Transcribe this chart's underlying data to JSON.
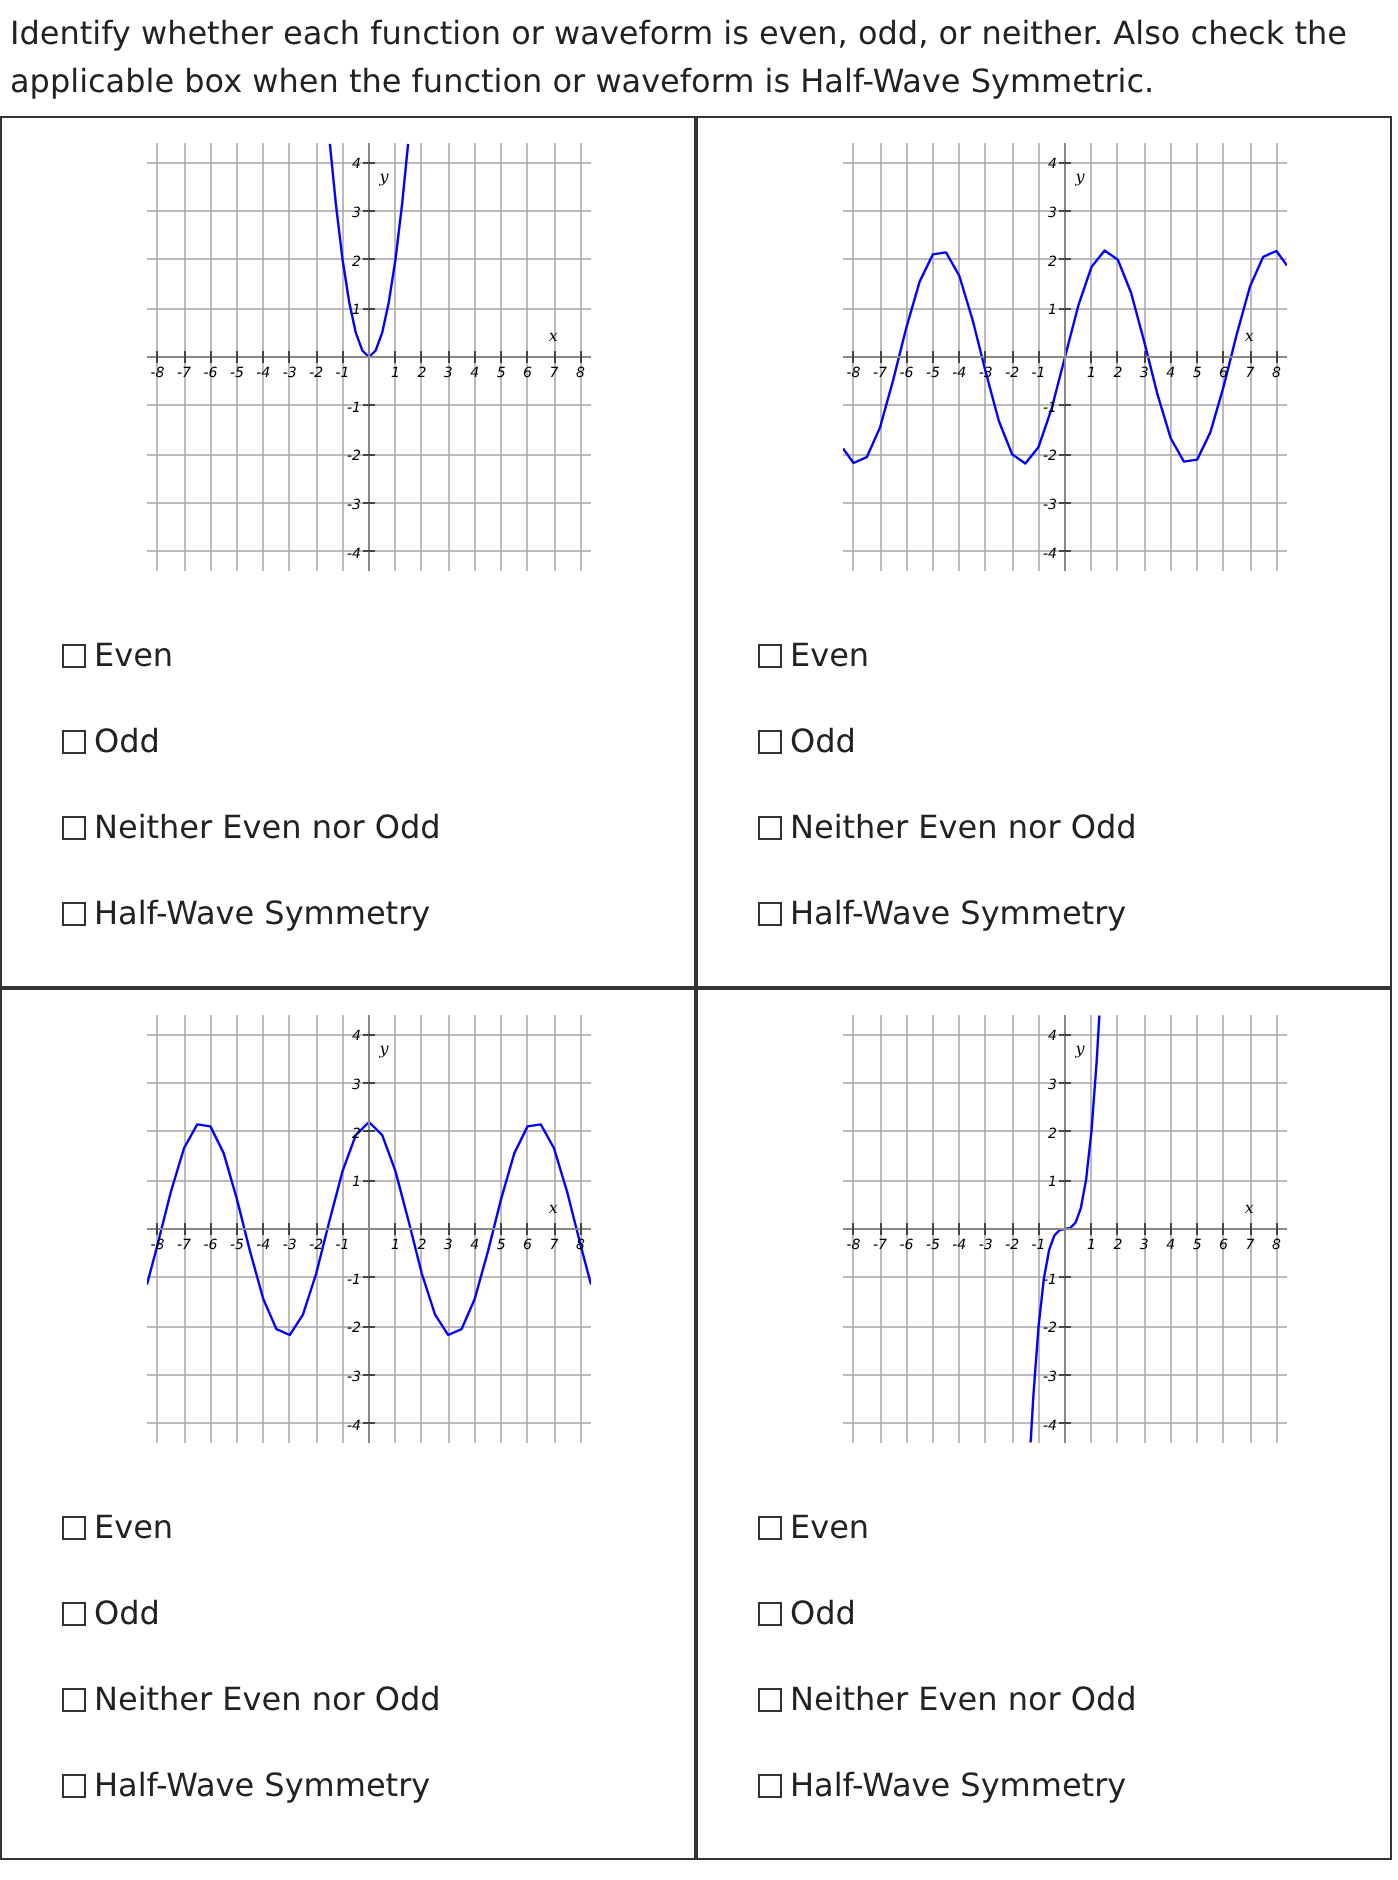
{
  "chart_data": [
    {
      "type": "line",
      "title": "Identify whether each function or waveform is even, odd, or neither. Also check the applicable box when the function or waveform is Half-Wave Symmetric.",
      "xlabel": "x",
      "ylabel": "y",
      "xlim": [
        -8.4,
        8.4
      ],
      "ylim": [
        -4.4,
        4.4
      ],
      "xticks": [
        -8,
        -7,
        -6,
        -5,
        -4,
        -3,
        -2,
        -1,
        1,
        2,
        3,
        4,
        5,
        6,
        7,
        8
      ],
      "yticks": [
        -4,
        -3,
        -2,
        -1,
        1,
        2,
        3,
        4
      ],
      "grid": true,
      "annotations": [
        "Even",
        "Odd",
        "Neither Even nor Odd",
        "Half-Wave Symmetry"
      ],
      "series": [
        {
          "color": "#0000ff",
          "x": [
            -1.48,
            -1.25,
            -1,
            -0.75,
            -0.5,
            -0.25,
            0,
            0.25,
            0.5,
            0.75,
            1,
            1.25,
            1.48
          ],
          "values": [
            4.38,
            3.13,
            2,
            1.13,
            0.5,
            0.13,
            0,
            0.13,
            0.5,
            1.13,
            2,
            3.13,
            4.38
          ]
        }
      ]
    },
    {
      "type": "line",
      "xlabel": "x",
      "ylabel": "y",
      "xlim": [
        -8.4,
        8.4
      ],
      "ylim": [
        -4.4,
        4.4
      ],
      "xticks": [
        -8,
        -7,
        -6,
        -5,
        -4,
        -3,
        -2,
        -1,
        1,
        2,
        3,
        4,
        5,
        6,
        7,
        8
      ],
      "yticks": [
        -4,
        -3,
        -2,
        -1,
        1,
        2,
        3,
        4
      ],
      "grid": true,
      "annotations": [
        "Even",
        "Odd",
        "Neither Even nor Odd",
        "Half-Wave Symmetry"
      ],
      "series": [
        {
          "color": "#0000ff",
          "x": [
            -8.4,
            -8,
            -7.5,
            -7,
            -6.5,
            -6,
            -5.5,
            -5,
            -4.5,
            -4,
            -3.5,
            -3,
            -2.5,
            -2,
            -1.5,
            -1,
            -0.5,
            0,
            0.5,
            1,
            1.5,
            2,
            2.5,
            3,
            3.5,
            4,
            4.5,
            5,
            5.5,
            6,
            6.5,
            7,
            7.5,
            8,
            8.4
          ],
          "values": [
            -1.88,
            -2.18,
            -2.06,
            -1.45,
            -0.47,
            0.61,
            1.55,
            2.11,
            2.15,
            1.67,
            0.77,
            -0.31,
            -1.32,
            -2.0,
            -2.19,
            -1.85,
            -1.05,
            0,
            1.05,
            1.85,
            2.19,
            2.0,
            1.32,
            0.31,
            -0.77,
            -1.67,
            -2.15,
            -2.11,
            -1.55,
            -0.61,
            0.47,
            1.45,
            2.06,
            2.18,
            1.88
          ]
        }
      ]
    },
    {
      "type": "line",
      "xlabel": "x",
      "ylabel": "y",
      "xlim": [
        -8.4,
        8.4
      ],
      "ylim": [
        -4.4,
        4.4
      ],
      "xticks": [
        -8,
        -7,
        -6,
        -5,
        -4,
        -3,
        -2,
        -1,
        1,
        2,
        3,
        4,
        5,
        6,
        7,
        8
      ],
      "yticks": [
        -4,
        -3,
        -2,
        -1,
        1,
        2,
        3,
        4
      ],
      "grid": true,
      "annotations": [
        "Even",
        "Odd",
        "Neither Even nor Odd",
        "Half-Wave Symmetry"
      ],
      "series": [
        {
          "color": "#0000ff",
          "x": [
            -8.4,
            -8,
            -7.5,
            -7,
            -6.5,
            -6,
            -5.5,
            -5,
            -4.5,
            -4,
            -3.5,
            -3,
            -2.5,
            -2,
            -1.5,
            -1,
            -0.5,
            0,
            0.5,
            1,
            1.5,
            2,
            2.5,
            3,
            3.5,
            4,
            4.5,
            5,
            5.5,
            6,
            6.5,
            7,
            7.5,
            8,
            8.4
          ],
          "values": [
            -1.14,
            -0.32,
            0.76,
            1.66,
            2.15,
            2.11,
            1.56,
            0.62,
            -0.46,
            -1.44,
            -2.06,
            -2.18,
            -1.76,
            -0.92,
            0.16,
            1.19,
            1.93,
            2.2,
            1.93,
            1.19,
            0.16,
            -0.92,
            -1.76,
            -2.18,
            -2.06,
            -1.44,
            -0.46,
            0.62,
            1.56,
            2.11,
            2.15,
            1.66,
            0.76,
            -0.32,
            -1.14
          ]
        }
      ]
    },
    {
      "type": "line",
      "xlabel": "x",
      "ylabel": "y",
      "xlim": [
        -8.4,
        8.4
      ],
      "ylim": [
        -4.4,
        4.4
      ],
      "xticks": [
        -8,
        -7,
        -6,
        -5,
        -4,
        -3,
        -2,
        -1,
        1,
        2,
        3,
        4,
        5,
        6,
        7,
        8
      ],
      "yticks": [
        -4,
        -3,
        -2,
        -1,
        1,
        2,
        3,
        4
      ],
      "grid": true,
      "annotations": [
        "Even",
        "Odd",
        "Neither Even nor Odd",
        "Half-Wave Symmetry"
      ],
      "series": [
        {
          "color": "#0000ff",
          "x": [
            -1.3,
            -1.2,
            -1,
            -0.8,
            -0.6,
            -0.4,
            -0.2,
            0,
            0.2,
            0.4,
            0.6,
            0.8,
            1,
            1.2,
            1.3
          ],
          "values": [
            -4.39,
            -3.46,
            -2,
            -1.02,
            -0.43,
            -0.13,
            -0.02,
            0,
            0.02,
            0.13,
            0.43,
            1.02,
            2,
            3.46,
            4.39
          ]
        }
      ]
    }
  ]
}
